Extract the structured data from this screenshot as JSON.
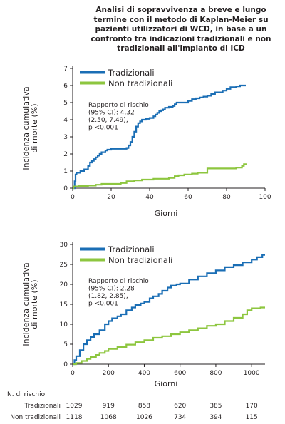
{
  "title_lines": [
    "Analisi di sopravvivenza a breve e lungo",
    "termine con il metodo di Kaplan-Meier su",
    "pazienti utilizzatori di WCD, in base a un",
    "confronto tra indicazioni tradizionali e non",
    "tradizionali all'impianto di ICD"
  ],
  "colors": {
    "traditional": "#1a6eb5",
    "nontraditional": "#8dc63f",
    "axis": "#231f20"
  },
  "chart_data": [
    {
      "type": "line",
      "step": true,
      "title": "",
      "xlabel": "Giorni",
      "ylabel_lines": [
        "Incidenza cumulativa",
        "di morte (%)"
      ],
      "xlim": [
        0,
        100
      ],
      "ylim": [
        0,
        7
      ],
      "xticks": [
        0,
        20,
        40,
        60,
        80,
        100
      ],
      "yticks": [
        0,
        1,
        2,
        3,
        4,
        5,
        6,
        7
      ],
      "legend_position": "top-left",
      "annotation": [
        "Rapporto di rischio",
        "(95% CI): 4.32",
        "(2.50, 7.49),",
        "p <0.001"
      ],
      "series": [
        {
          "name": "Tradizionali",
          "color_key": "traditional",
          "x": [
            0,
            1,
            1.5,
            2,
            4,
            6,
            8,
            9,
            10,
            11,
            12,
            13,
            14,
            15,
            17,
            18,
            20,
            21,
            22,
            23,
            28,
            29,
            30,
            31,
            32,
            33,
            34,
            35,
            36,
            38,
            40,
            42,
            43,
            44,
            45,
            46,
            47,
            48,
            50,
            52,
            53,
            54,
            55,
            56,
            57,
            60,
            62,
            64,
            66,
            68,
            70,
            72,
            74,
            76,
            78,
            80,
            82,
            85,
            87,
            90
          ],
          "y": [
            0,
            0.4,
            0.8,
            0.9,
            1.0,
            1.1,
            1.3,
            1.5,
            1.6,
            1.7,
            1.8,
            1.9,
            2.0,
            2.1,
            2.2,
            2.25,
            2.3,
            2.3,
            2.3,
            2.3,
            2.35,
            2.5,
            2.7,
            3.0,
            3.3,
            3.6,
            3.8,
            3.9,
            4.0,
            4.05,
            4.1,
            4.2,
            4.3,
            4.4,
            4.5,
            4.55,
            4.6,
            4.7,
            4.75,
            4.8,
            4.9,
            5.0,
            5.0,
            5.0,
            5.0,
            5.1,
            5.2,
            5.25,
            5.3,
            5.35,
            5.4,
            5.5,
            5.6,
            5.6,
            5.7,
            5.8,
            5.9,
            5.95,
            6.0,
            6.0
          ]
        },
        {
          "name": "Non tradizionali",
          "color_key": "nontraditional",
          "x": [
            0,
            0.5,
            3,
            8,
            12,
            15,
            20,
            25,
            28,
            32,
            36,
            42,
            50,
            53,
            55,
            58,
            62,
            65,
            70,
            75,
            80,
            85,
            88,
            89,
            90
          ],
          "y": [
            0,
            0.1,
            0.12,
            0.15,
            0.2,
            0.25,
            0.25,
            0.3,
            0.4,
            0.45,
            0.5,
            0.55,
            0.6,
            0.7,
            0.75,
            0.8,
            0.85,
            0.9,
            1.15,
            1.15,
            1.15,
            1.2,
            1.3,
            1.4,
            1.45
          ]
        }
      ]
    },
    {
      "type": "line",
      "step": true,
      "title": "",
      "xlabel": "Giorni",
      "ylabel_lines": [
        "Incidenza cumulativa",
        "di morte (%)"
      ],
      "xlim": [
        0,
        1075
      ],
      "ylim": [
        0,
        30
      ],
      "xticks": [
        0,
        200,
        400,
        600,
        800,
        1000
      ],
      "yticks": [
        0,
        5,
        10,
        15,
        20,
        25,
        30
      ],
      "legend_position": "top-left",
      "annotation": [
        "Rapporto di rischio",
        "(95% CI): 2.28",
        "(1.82, 2.85),",
        "p <0.001"
      ],
      "series": [
        {
          "name": "Tradizionali",
          "color_key": "traditional",
          "x": [
            0,
            10,
            20,
            40,
            60,
            80,
            100,
            120,
            150,
            180,
            200,
            220,
            250,
            270,
            300,
            330,
            350,
            380,
            400,
            430,
            450,
            480,
            500,
            530,
            550,
            580,
            600,
            650,
            700,
            750,
            800,
            850,
            900,
            950,
            1000,
            1030,
            1060,
            1075
          ],
          "y": [
            0,
            1.0,
            2.0,
            3.5,
            5.0,
            6.0,
            6.8,
            7.5,
            8.5,
            10.0,
            10.8,
            11.5,
            12.0,
            12.5,
            13.5,
            14.2,
            14.8,
            15.2,
            15.6,
            16.5,
            17.0,
            17.6,
            18.4,
            19.2,
            19.7,
            20.0,
            20.2,
            21.2,
            22.0,
            22.8,
            23.5,
            24.3,
            24.8,
            25.5,
            26.2,
            26.8,
            27.4,
            27.4
          ]
        },
        {
          "name": "Non tradizionali",
          "color_key": "nontraditional",
          "x": [
            0,
            20,
            50,
            80,
            100,
            130,
            150,
            180,
            200,
            250,
            300,
            350,
            400,
            450,
            500,
            550,
            600,
            650,
            700,
            750,
            800,
            850,
            900,
            950,
            975,
            1000,
            1050,
            1075
          ],
          "y": [
            0,
            0.3,
            0.8,
            1.3,
            1.8,
            2.3,
            2.8,
            3.3,
            3.8,
            4.3,
            4.9,
            5.5,
            6.0,
            6.6,
            7.0,
            7.5,
            8.0,
            8.5,
            9.0,
            9.6,
            10.0,
            10.8,
            11.6,
            12.5,
            13.5,
            14.0,
            14.2,
            14.2
          ]
        }
      ]
    }
  ],
  "risk_table": {
    "header": "N. di rischio",
    "times": [
      0,
      200,
      400,
      600,
      800,
      1000
    ],
    "rows": [
      {
        "label": "Tradizionali",
        "values": [
          "1029",
          "919",
          "858",
          "620",
          "385",
          "170"
        ]
      },
      {
        "label": "Non tradizionali",
        "values": [
          "1118",
          "1068",
          "1026",
          "734",
          "394",
          "115"
        ]
      }
    ]
  }
}
